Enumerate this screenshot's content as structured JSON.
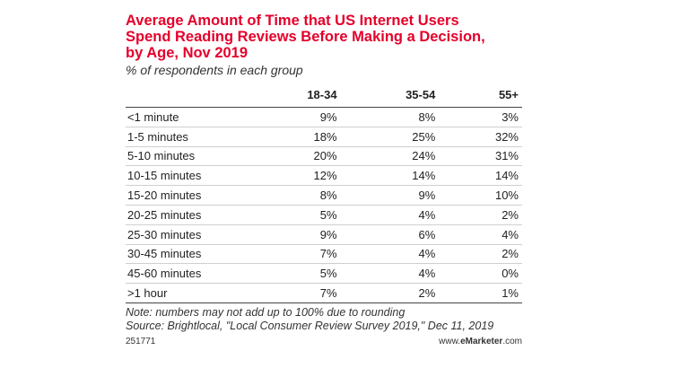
{
  "chart_data": {
    "type": "table",
    "title_lines": [
      "Average Amount of Time that US Internet Users",
      "Spend Reading Reviews Before Making a Decision,",
      "by Age, Nov 2019"
    ],
    "subtitle": "% of respondents in each group",
    "columns": [
      "18-34",
      "35-54",
      "55+"
    ],
    "rows": [
      {
        "label": "<1 minute",
        "values": [
          "9%",
          "8%",
          "3%"
        ]
      },
      {
        "label": "1-5 minutes",
        "values": [
          "18%",
          "25%",
          "32%"
        ]
      },
      {
        "label": "5-10 minutes",
        "values": [
          "20%",
          "24%",
          "31%"
        ]
      },
      {
        "label": "10-15 minutes",
        "values": [
          "12%",
          "14%",
          "14%"
        ]
      },
      {
        "label": "15-20 minutes",
        "values": [
          "8%",
          "9%",
          "10%"
        ]
      },
      {
        "label": "20-25 minutes",
        "values": [
          "5%",
          "4%",
          "2%"
        ]
      },
      {
        "label": "25-30 minutes",
        "values": [
          "9%",
          "6%",
          "4%"
        ]
      },
      {
        "label": "30-45 minutes",
        "values": [
          "7%",
          "4%",
          "2%"
        ]
      },
      {
        "label": "45-60 minutes",
        "values": [
          "5%",
          "4%",
          "0%"
        ]
      },
      {
        "label": ">1 hour",
        "values": [
          "7%",
          "2%",
          "1%"
        ]
      }
    ],
    "note": "Note: numbers may not add up to 100% due to rounding",
    "source": "Source: Brightlocal, \"Local Consumer Review Survey 2019,\" Dec 11, 2019",
    "chart_id": "251771",
    "brand_prefix": "www.",
    "brand_name": "eMarketer",
    "brand_suffix": ".com",
    "title_color": "#e4002b"
  }
}
